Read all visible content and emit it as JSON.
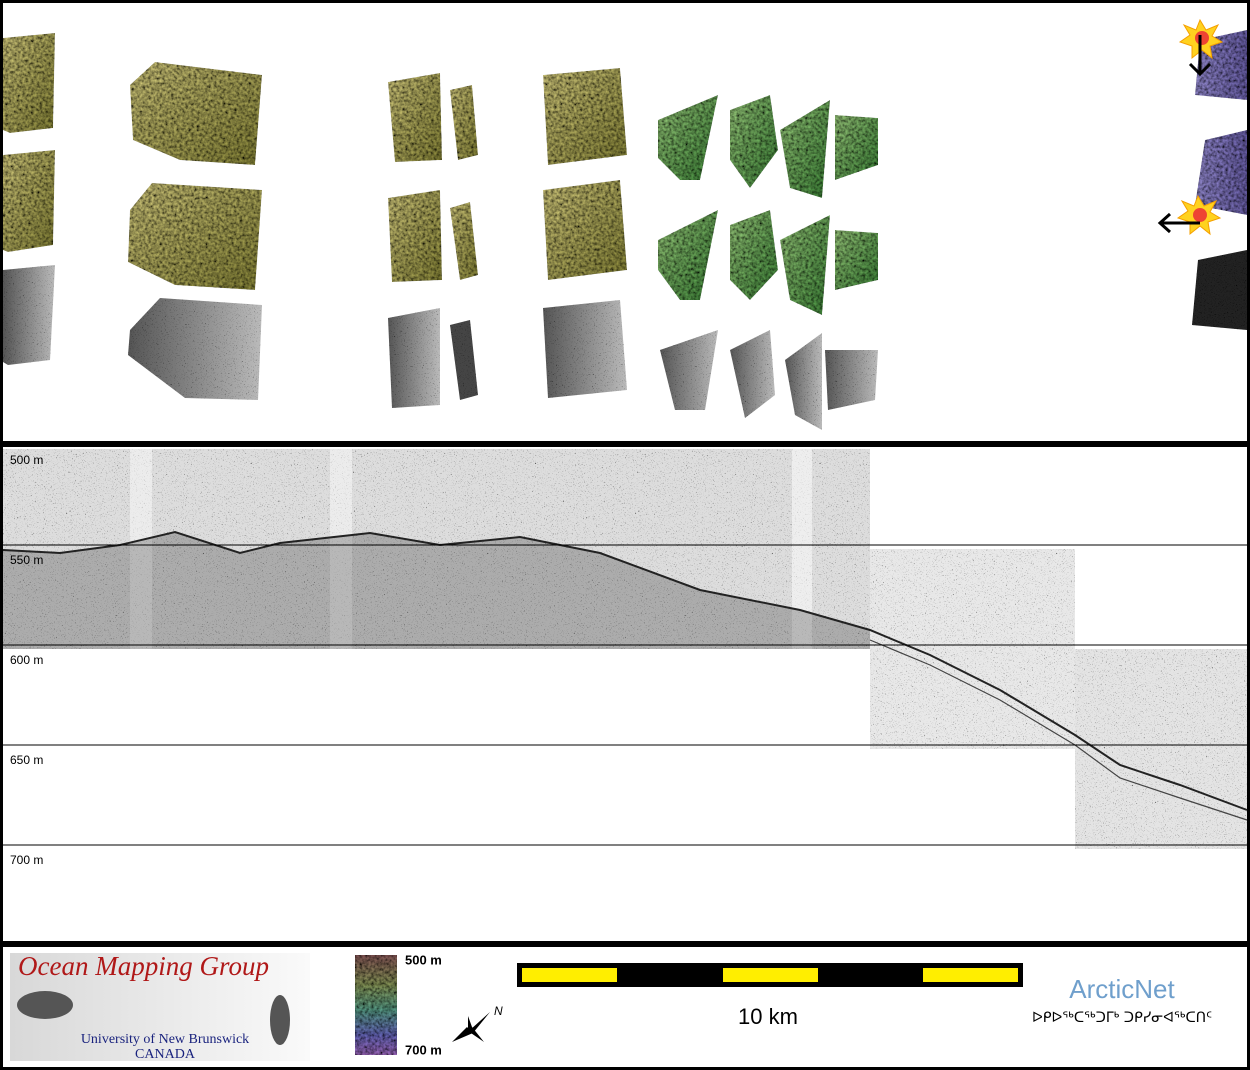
{
  "logo": {
    "title": "Ocean Mapping Group",
    "university": "University of New Brunswick",
    "country": "CANADA"
  },
  "profile": {
    "depth_labels": [
      "500 m",
      "550 m",
      "600 m",
      "650 m",
      "700 m"
    ]
  },
  "color_scale": {
    "top_label": "500 m",
    "bottom_label": "700 m"
  },
  "scale_bar": {
    "label": "10 km"
  },
  "arcticnet": {
    "name": "ArcticNet",
    "subtitle": "ᐅᑭᐅᖅᑕᖅᑐᒥᒃ ᑐᑭᓯᓂᐊᖅᑕᑎᑦ"
  },
  "compass": {
    "label": "N"
  }
}
